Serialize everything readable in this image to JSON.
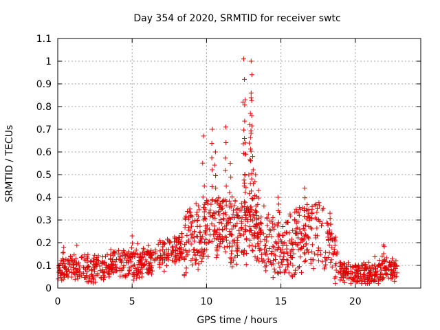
{
  "chart_data": {
    "type": "scatter",
    "title": "Day 354 of 2020, SRMTID for receiver swtc",
    "xlabel": "GPS time / hours",
    "ylabel": "SRMTID / TECUs",
    "xlim": [
      0,
      24.4
    ],
    "ylim": [
      0,
      1.1
    ],
    "x_ticks": [
      0,
      5,
      10,
      15,
      20
    ],
    "x_tick_labels": [
      "0",
      "5",
      "10",
      "15",
      "20"
    ],
    "y_ticks": [
      0,
      0.1,
      0.2,
      0.3,
      0.4,
      0.5,
      0.6,
      0.7,
      0.8,
      0.9,
      1.0,
      1.1
    ],
    "y_tick_labels": [
      "0",
      "0.1",
      "0.2",
      "0.3",
      "0.4",
      "0.5",
      "0.6",
      "0.7",
      "0.8",
      "0.9",
      "1",
      "1.1"
    ],
    "grid": true,
    "marker": "+",
    "color": "#e00000",
    "series": [
      {
        "name": "SRMTID",
        "profile_x": [
          0,
          1,
          2,
          3,
          4,
          5,
          6,
          7,
          8,
          9,
          10,
          11,
          12,
          13,
          14,
          15,
          16,
          17,
          18,
          18.5,
          19,
          20,
          21,
          22,
          22.8
        ],
        "profile_y": [
          0.08,
          0.1,
          0.09,
          0.08,
          0.11,
          0.1,
          0.11,
          0.14,
          0.17,
          0.2,
          0.26,
          0.27,
          0.24,
          0.26,
          0.22,
          0.17,
          0.2,
          0.25,
          0.22,
          0.15,
          0.08,
          0.06,
          0.06,
          0.08,
          0.08
        ],
        "peaks": [
          {
            "x": 9.8,
            "y": 0.67
          },
          {
            "x": 10.4,
            "y": 0.7
          },
          {
            "x": 10.6,
            "y": 0.6
          },
          {
            "x": 11.3,
            "y": 0.71
          },
          {
            "x": 11.6,
            "y": 0.55
          },
          {
            "x": 12.5,
            "y": 1.01
          },
          {
            "x": 12.55,
            "y": 0.92
          },
          {
            "x": 12.6,
            "y": 0.83
          },
          {
            "x": 12.6,
            "y": 0.64
          },
          {
            "x": 13.0,
            "y": 1.0
          },
          {
            "x": 13.05,
            "y": 0.94
          },
          {
            "x": 13.0,
            "y": 0.86
          },
          {
            "x": 12.95,
            "y": 0.77
          },
          {
            "x": 12.9,
            "y": 0.72
          },
          {
            "x": 13.1,
            "y": 0.58
          },
          {
            "x": 13.3,
            "y": 0.5
          },
          {
            "x": 13.5,
            "y": 0.43
          },
          {
            "x": 14.8,
            "y": 0.4
          },
          {
            "x": 16.6,
            "y": 0.44
          },
          {
            "x": 17.1,
            "y": 0.36
          },
          {
            "x": 18.3,
            "y": 0.33
          },
          {
            "x": 21.9,
            "y": 0.19
          },
          {
            "x": 0.4,
            "y": 0.18
          },
          {
            "x": 5.0,
            "y": 0.23
          }
        ],
        "x_range": [
          0,
          22.8
        ],
        "n_points": 1400
      }
    ]
  }
}
